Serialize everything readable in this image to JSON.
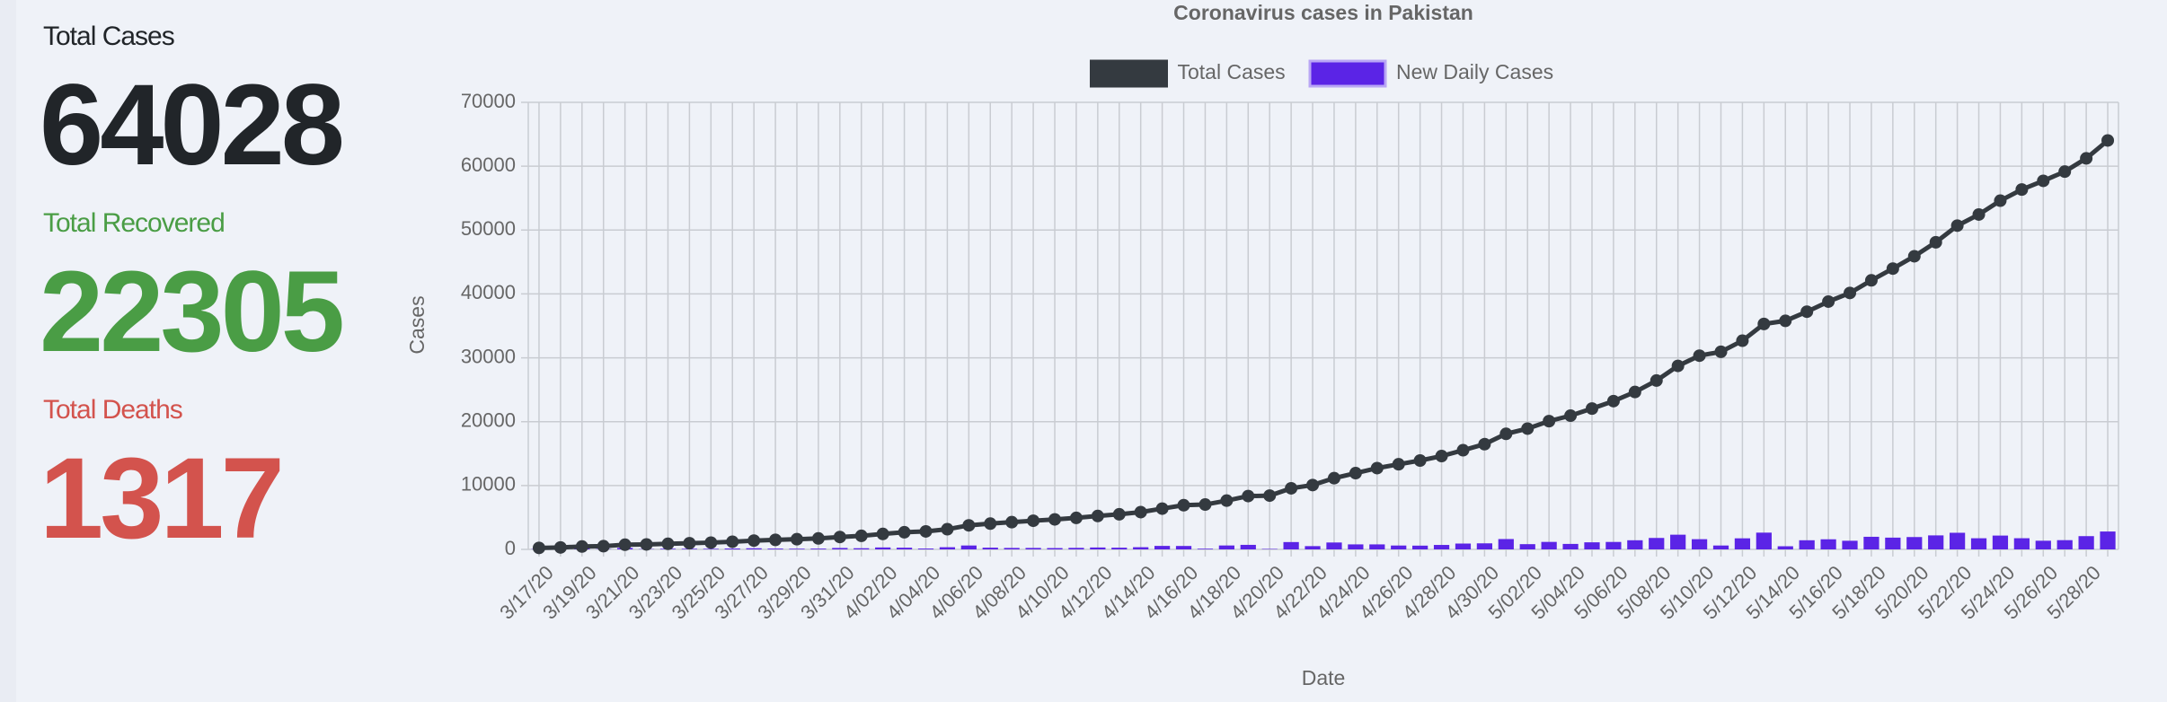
{
  "stats": [
    {
      "label": "Total Cases",
      "value": "64028",
      "color": "#212529"
    },
    {
      "label": "Total Recovered",
      "value": "22305",
      "color": "#4a9d45"
    },
    {
      "label": "Total Deaths",
      "value": "1317",
      "color": "#d3534d"
    }
  ],
  "chart_data": {
    "type": "line-bar",
    "title": "Coronavirus cases in Pakistan",
    "x_label": "Date",
    "y_label": "Cases",
    "categories": [
      "3/17/20",
      null,
      "3/19/20",
      null,
      "3/21/20",
      null,
      "3/23/20",
      null,
      "3/25/20",
      null,
      "3/27/20",
      null,
      "3/29/20",
      null,
      "3/31/20",
      null,
      "4/02/20",
      null,
      "4/04/20",
      null,
      "4/06/20",
      null,
      "4/08/20",
      null,
      "4/10/20",
      null,
      "4/12/20",
      null,
      "4/14/20",
      null,
      "4/16/20",
      null,
      "4/18/20",
      null,
      "4/20/20",
      null,
      "4/22/20",
      null,
      "4/24/20",
      null,
      "4/26/20",
      null,
      "4/28/20",
      null,
      "4/30/20",
      null,
      "5/02/20",
      null,
      "5/04/20",
      null,
      "5/06/20",
      null,
      "5/08/20",
      null,
      "5/10/20",
      null,
      "5/12/20",
      null,
      "5/14/20",
      null,
      "5/16/20",
      null,
      "5/18/20",
      null,
      "5/20/20",
      null,
      "5/22/20",
      null,
      "5/24/20",
      null,
      "5/26/20",
      null,
      "5/28/20",
      null
    ],
    "series": [
      {
        "name": "Total Cases",
        "color": "#343a40",
        "values": [
          237,
          301,
          454,
          501,
          730,
          776,
          875,
          972,
          1063,
          1201,
          1373,
          1495,
          1597,
          1717,
          1938,
          2118,
          2421,
          2686,
          2818,
          3157,
          3766,
          4035,
          4263,
          4489,
          4695,
          4934,
          5230,
          5496,
          5837,
          6383,
          6919,
          7025,
          7638,
          8348,
          8418,
          9565,
          10076,
          11155,
          11940,
          12723,
          13328,
          13915,
          14612,
          15525,
          16473,
          18092,
          18912,
          20084,
          20941,
          22049,
          23214,
          24644,
          26435,
          28736,
          30334,
          30941,
          32674,
          35298,
          35788,
          37218,
          38799,
          40151,
          42125,
          43966,
          45898,
          48091,
          50694,
          52437,
          54601,
          56349,
          57705,
          59151,
          61227,
          64028
        ]
      },
      {
        "name": "New Daily Cases",
        "color": "#5b24e6",
        "values": [
          50,
          64,
          153,
          47,
          229,
          46,
          99,
          97,
          91,
          138,
          172,
          122,
          102,
          120,
          221,
          180,
          303,
          265,
          132,
          339,
          609,
          269,
          228,
          226,
          206,
          239,
          296,
          266,
          341,
          546,
          536,
          106,
          613,
          710,
          70,
          1147,
          511,
          1079,
          785,
          783,
          605,
          587,
          697,
          913,
          948,
          1619,
          820,
          1172,
          857,
          1108,
          1165,
          1430,
          1791,
          2301,
          1598,
          607,
          1733,
          2624,
          490,
          1430,
          1581,
          1352,
          1974,
          1841,
          1932,
          2193,
          2603,
          1743,
          2164,
          1748,
          1356,
          1446,
          2076,
          2801
        ]
      }
    ],
    "ylim": [
      0,
      70000
    ],
    "yticks": [
      0,
      10000,
      20000,
      30000,
      40000,
      50000,
      60000,
      70000
    ],
    "grid": true
  }
}
